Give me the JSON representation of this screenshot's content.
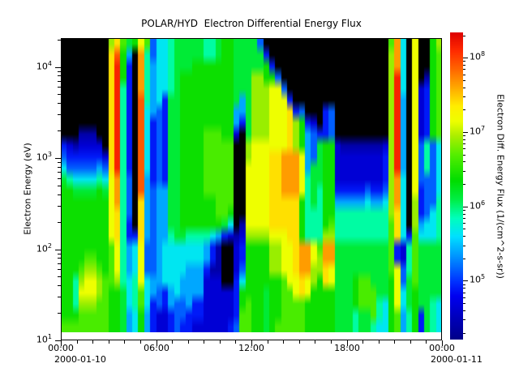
{
  "title": "POLAR/HYD  Electron Differential Energy Flux",
  "y_axis": {
    "label": "Electron Energy (eV)",
    "major_exponents": [
      1,
      2,
      3,
      4
    ]
  },
  "x_axis": {
    "tick_labels": [
      "00:00",
      "06:00",
      "12:00",
      "18:00",
      "00:00"
    ],
    "tick_hours": [
      0,
      6,
      12,
      18,
      24
    ],
    "minor_tick_step_hours": 1,
    "start_date": "2000-01-10",
    "end_date": "2000-01-11"
  },
  "colorbar": {
    "label": "Electron Diff. Energy Flux (1/(cm^2-s-sr))",
    "major_exponents": [
      5,
      6,
      7,
      8
    ],
    "log_range": [
      4.22,
      8.34
    ]
  },
  "colors": {
    "background": "#ffffff",
    "axis": "#000000",
    "no_data": "#000000",
    "colormap_stops": [
      [
        4.2,
        "#000085"
      ],
      [
        4.8,
        "#0000f0"
      ],
      [
        5.0,
        "#0033ff"
      ],
      [
        5.35,
        "#0099ff"
      ],
      [
        5.6,
        "#00e0ff"
      ],
      [
        5.85,
        "#00ffbb"
      ],
      [
        6.1,
        "#00ee44"
      ],
      [
        6.35,
        "#00dd00"
      ],
      [
        6.7,
        "#55ee00"
      ],
      [
        6.95,
        "#aaee00"
      ],
      [
        7.15,
        "#eeff00"
      ],
      [
        7.35,
        "#ffee00"
      ],
      [
        7.6,
        "#ffaa00"
      ],
      [
        7.85,
        "#ff6600"
      ],
      [
        8.1,
        "#ff2a00"
      ],
      [
        8.35,
        "#dd0000"
      ]
    ]
  },
  "chart_data": {
    "type": "heatmap",
    "title": "POLAR/HYD  Electron Differential Energy Flux",
    "x_range_hours": [
      0,
      24
    ],
    "x_start": "2000-01-10 00:00",
    "x_end": "2000-01-11 00:00",
    "y_log10_ev_range": [
      1.09,
      4.32
    ],
    "flux_log10_range": [
      4.22,
      8.34
    ],
    "value_encoding": {
      "no_data_char": ".",
      "chars": "0123456789abcdef",
      "base_log10": 4.4,
      "step_log10": 0.25,
      "unit": "log10 of differential energy flux"
    },
    "grid_cols": 64,
    "grid_rows": 26,
    "rows_top_to_bottom": [
      "........ac978b935567777766788777 73.....................9d5.b..8a",
      "........ce84.d635567777766788777772....................ad5.b..89",
      "........cf82.d6455677788888887777782...................ad5.b..89",
      "........cf82.d645567888888888777aa883..................af5.b.089",
      "........cf62.d645567888888888777aaabb3.................af5.b1289",
      "........cf62.e645277888888888747aaabbb2................af4.b1289",
      "........cf62.e543277888888888447aaabbbc23...23.........af4.b1289",
      "........cf62.e523277888888888427aaabbbca821.23.........af4.b1289",
      "...000..cf62.e5232778888999881.7aaabbbca843223.........af4.b1289",
      "2101111.cf62.e523277888899999..abbbbbbca843788100000001af4.b3635",
      "32222221cf62.e523277888899999..abbbccdddb43788111111112af4.b3635",
      "53333343cf62.e523277888899999..bbbbccdddb47788111111112af4.b3635",
      "76555565bd63.e423277888899999..bbbbccdddb67788111111112ad5.b3335",
      "88777787bd63.e434477888899999..bbbbccdddb67688222223223ad5.b2335",
      "88888888bd63.c434477888888999..bbbbccccc867688444445445ad5.a2336",
      "88888888bc63.c434477888888998..bbbbccccc866688666666666ac5.a2356",
      "88888888bc62.c434477888888875.0bbbbccccc8666896666666669c5.a4556",
      "88888888bc622c43446776666542101aaaabbbcc8666aa6666666669c5295556",
      "888888889b645b3345555555420..128888aabbcddb9dd777777777921697777",
      "888899889b645b3345555555420..128888aabbcddbadd777777777921697777",
      "8889aa989b645b3345555444200..138888aabbcddaacb77777777 79b3697777",
      "886abba99a656b5445554444111..258888889bbcba8cb7778997778b3797777",
      "886bbba98875695432454444111112888878899bcb88887778999778b5787777",
      "886aaa998875695232433422111112898878899998888877789996 58b5787765",
      "888999998874584211233222111112998878899998888877767796 5894682765",
      "999999998874584211232211111123998878999998888877767765 5894682765"
    ]
  }
}
